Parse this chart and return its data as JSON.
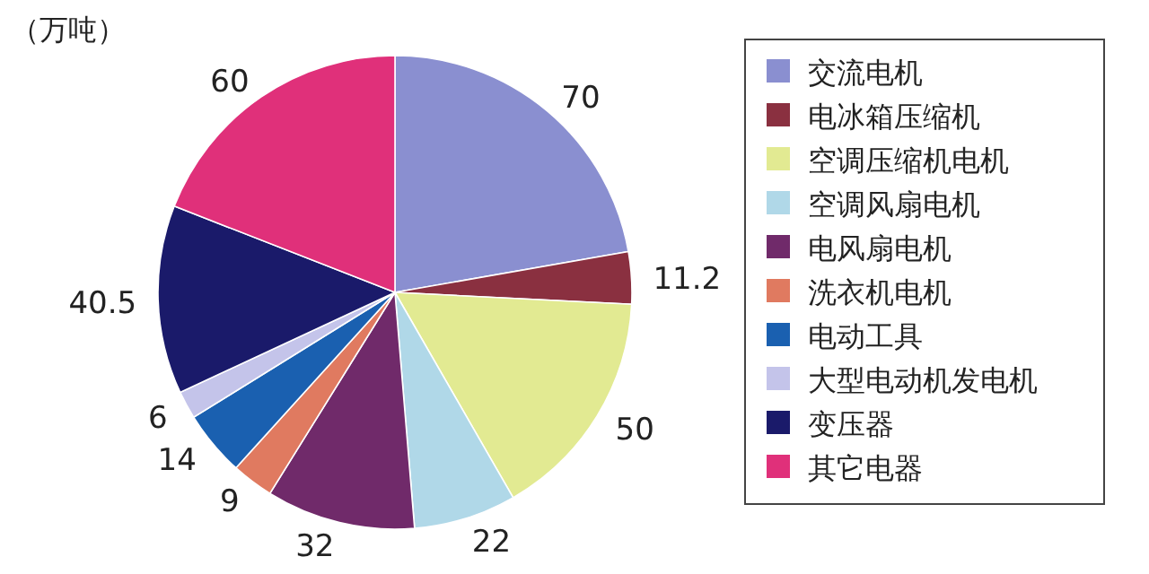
{
  "chart_data": {
    "type": "pie",
    "annotations": [
      "（万吨）"
    ],
    "categories": [
      "交流电机",
      "电冰箱压缩机",
      "空调压缩机电机",
      "空调风扇电机",
      "电风扇电机",
      "洗衣机电机",
      "电动工具",
      "大型电动机发电机",
      "变压器",
      "其它电器"
    ],
    "values": [
      70,
      11.2,
      50,
      22,
      32,
      9,
      14,
      6,
      40.5,
      60
    ],
    "colors": [
      "#8a8fd0",
      "#8a3040",
      "#e2ea92",
      "#b0d8e8",
      "#702a6a",
      "#e07a60",
      "#1a60b0",
      "#c4c4ea",
      "#1a1a6a",
      "#e0307a"
    ],
    "data_labels": true,
    "legend": "right"
  }
}
